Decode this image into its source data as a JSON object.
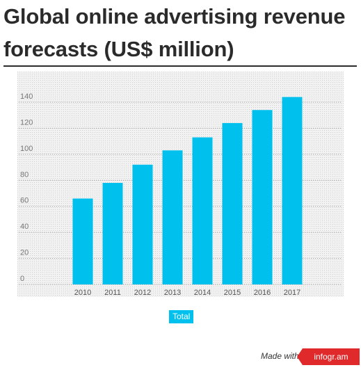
{
  "title": "Global online advertising revenue forecasts (US$ million)",
  "chart_data": {
    "type": "bar",
    "title": "Global online advertising revenue forecasts (US$ million)",
    "categories": [
      "2010",
      "2011",
      "2012",
      "2013",
      "2014",
      "2015",
      "2016",
      "2017"
    ],
    "series": [
      {
        "name": "Total",
        "values": [
          66,
          78,
          92,
          103,
          113,
          124,
          134,
          144
        ]
      }
    ],
    "yticks": [
      "0",
      "20",
      "40",
      "60",
      "80",
      "100",
      "120",
      "140"
    ],
    "ylim": [
      0,
      150
    ],
    "xlabel": "",
    "ylabel": "",
    "grid": true,
    "legend": "bottom-center",
    "colors": {
      "bar": "#00c0ee",
      "plot_bg": "#f2f2f2",
      "grid": "#9b9b9b"
    }
  },
  "credit": {
    "made_with": "Made with",
    "brand": "infogr.am"
  }
}
